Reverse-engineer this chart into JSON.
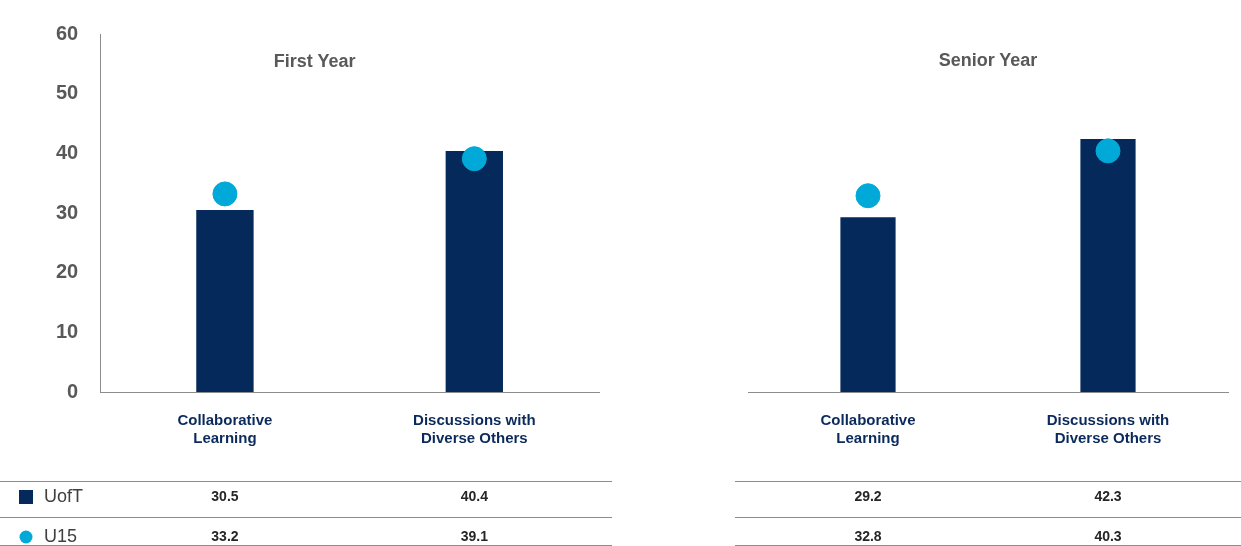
{
  "chart_data": [
    {
      "type": "bar",
      "title": "First Year",
      "categories": [
        "Collaborative Learning",
        "Discussions with Diverse Others"
      ],
      "series": [
        {
          "name": "UofT",
          "color": "#04295a",
          "values": [
            30.5,
            40.4
          ]
        },
        {
          "name": "U15",
          "type": "scatter",
          "color": "#00a9d8",
          "values": [
            33.2,
            39.1
          ]
        }
      ],
      "ylim": [
        0,
        60
      ],
      "yticks": [
        0,
        10,
        20,
        30,
        40,
        50,
        60
      ],
      "grid": false,
      "legend": "bottom",
      "data_labels": true,
      "marker": "circle"
    },
    {
      "type": "bar",
      "title": "Senior Year",
      "categories": [
        "Collaborative Learning",
        "Discussions with Diverse Others"
      ],
      "series": [
        {
          "color": "#04295a",
          "values": [
            29.2,
            42.3
          ]
        },
        {
          "type": "scatter",
          "color": "#00a9d8",
          "values": [
            32.8,
            40.3
          ]
        }
      ],
      "ylim": [
        0,
        60
      ],
      "yticks": [
        0,
        10,
        20,
        30,
        40,
        50,
        60
      ],
      "grid": false,
      "legend": false,
      "data_labels": true,
      "marker": "circle",
      "tick_labels": "x"
    }
  ]
}
